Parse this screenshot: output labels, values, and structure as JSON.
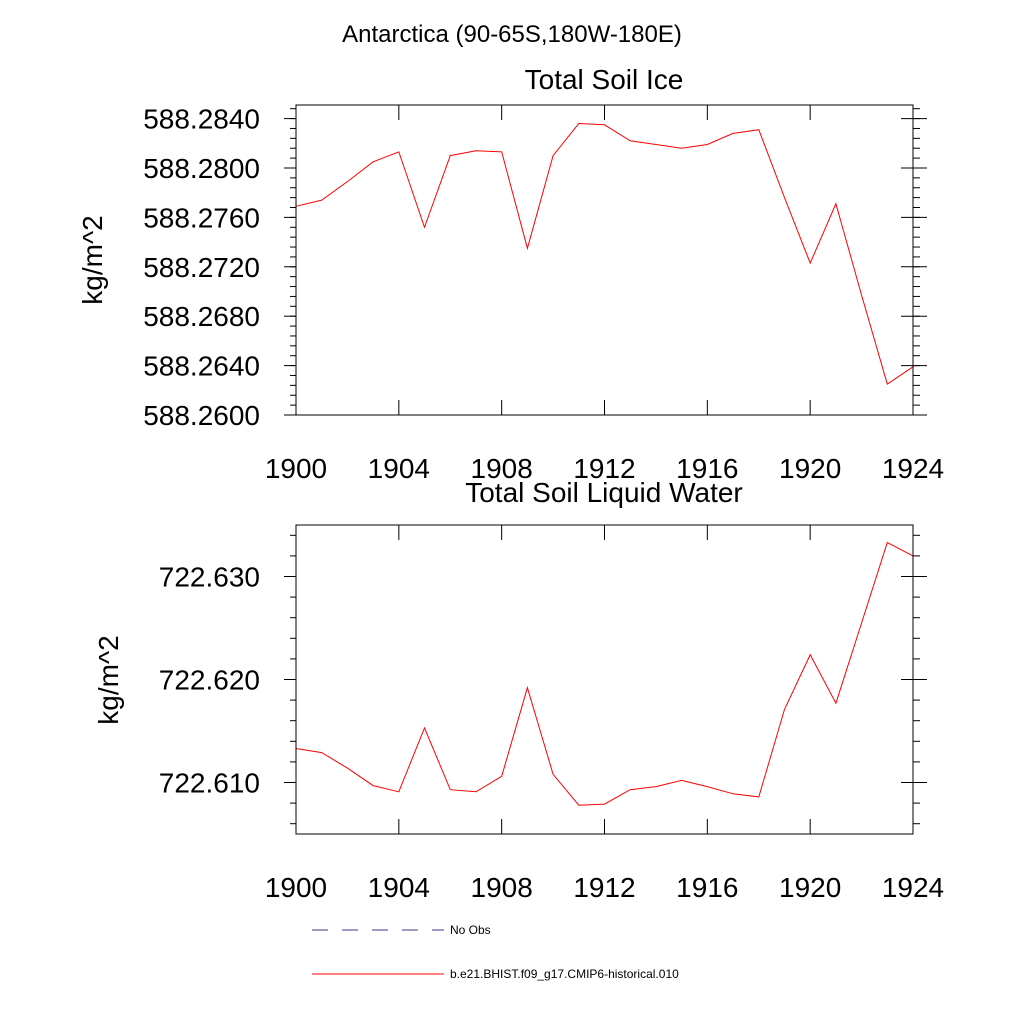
{
  "suptitle": "Antarctica (90-65S,180W-180E)",
  "chart_data": [
    {
      "type": "line",
      "title": "Total Soil Ice",
      "xlabel": "",
      "ylabel": "kg/m^2",
      "xlim": [
        1900,
        1924
      ],
      "ylim": [
        588.26,
        588.2851
      ],
      "xticks": [
        1900,
        1904,
        1908,
        1912,
        1916,
        1920,
        1924
      ],
      "xtick_labels": [
        "1900",
        "1904",
        "1908",
        "1912",
        "1916",
        "1920",
        "1924"
      ],
      "yticks": [
        588.26,
        588.264,
        588.268,
        588.272,
        588.276,
        588.28,
        588.284
      ],
      "ytick_labels": [
        "588.2600",
        "588.2640",
        "588.2680",
        "588.2720",
        "588.2760",
        "588.2800",
        "588.2840"
      ],
      "color": "#ff0000",
      "series": [
        {
          "name": "b.e21.BHIST.f09_g17.CMIP6-historical.010",
          "x": [
            1900,
            1901,
            1902,
            1903,
            1904,
            1905,
            1906,
            1907,
            1908,
            1909,
            1910,
            1911,
            1912,
            1913,
            1914,
            1915,
            1916,
            1917,
            1918,
            1919,
            1920,
            1921,
            1922,
            1923,
            1924
          ],
          "y": [
            588.2769,
            588.2774,
            588.2789,
            588.2805,
            588.2813,
            588.2752,
            588.281,
            588.2814,
            588.2813,
            588.2735,
            588.281,
            588.2836,
            588.2835,
            588.2822,
            588.2819,
            588.2816,
            588.2819,
            588.2828,
            588.2831,
            588.2776,
            588.2723,
            588.2771,
            588.2697,
            588.2625,
            588.2639
          ]
        }
      ]
    },
    {
      "type": "line",
      "title": "Total Soil Liquid Water",
      "xlabel": "",
      "ylabel": "kg/m^2",
      "xlim": [
        1900,
        1924
      ],
      "ylim": [
        722.605,
        722.635
      ],
      "xticks": [
        1900,
        1904,
        1908,
        1912,
        1916,
        1920,
        1924
      ],
      "xtick_labels": [
        "1900",
        "1904",
        "1908",
        "1912",
        "1916",
        "1920",
        "1924"
      ],
      "yticks": [
        722.61,
        722.62,
        722.63
      ],
      "ytick_labels": [
        "722.610",
        "722.620",
        "722.630"
      ],
      "color": "#ff0000",
      "series": [
        {
          "name": "b.e21.BHIST.f09_g17.CMIP6-historical.010",
          "x": [
            1900,
            1901,
            1902,
            1903,
            1904,
            1905,
            1906,
            1907,
            1908,
            1909,
            1910,
            1911,
            1912,
            1913,
            1914,
            1915,
            1916,
            1917,
            1918,
            1919,
            1920,
            1921,
            1922,
            1923,
            1924
          ],
          "y": [
            722.6133,
            722.6129,
            722.6114,
            722.6097,
            722.6091,
            722.6153,
            722.6093,
            722.6091,
            722.6106,
            722.6192,
            722.6108,
            722.6078,
            722.6079,
            722.6093,
            722.6096,
            722.6102,
            722.6096,
            722.6089,
            722.6086,
            722.6171,
            722.6224,
            722.6177,
            722.6255,
            722.6333,
            722.632
          ]
        }
      ]
    }
  ],
  "legend": [
    {
      "label": "No Obs",
      "color": "#3a3a8c",
      "dash": "dashed"
    },
    {
      "label": "b.e21.BHIST.f09_g17.CMIP6-historical.010",
      "color": "#ff0000",
      "dash": "solid"
    }
  ]
}
